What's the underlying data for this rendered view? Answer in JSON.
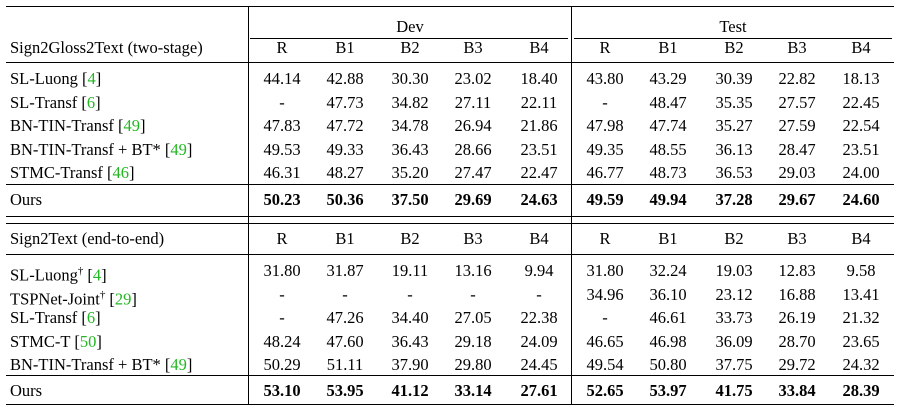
{
  "groups": {
    "dev": "Dev",
    "test": "Test"
  },
  "metric_headers": [
    "R",
    "B1",
    "B2",
    "B3",
    "B4"
  ],
  "section1": {
    "header": "Sign2Gloss2Text (two-stage)",
    "rows": [
      {
        "name": "SL-Luong ",
        "cite": "4",
        "post": "",
        "dev": [
          "44.14",
          "42.88",
          "30.30",
          "23.02",
          "18.40"
        ],
        "test": [
          "43.80",
          "43.29",
          "30.39",
          "22.82",
          "18.13"
        ]
      },
      {
        "name": "SL-Transf ",
        "cite": "6",
        "post": "",
        "dev": [
          "-",
          "47.73",
          "34.82",
          "27.11",
          "22.11"
        ],
        "test": [
          "-",
          "48.47",
          "35.35",
          "27.57",
          "22.45"
        ]
      },
      {
        "name": "BN-TIN-Transf ",
        "cite": "49",
        "post": "",
        "dev": [
          "47.83",
          "47.72",
          "34.78",
          "26.94",
          "21.86"
        ],
        "test": [
          "47.98",
          "47.74",
          "35.27",
          "27.59",
          "22.54"
        ]
      },
      {
        "name": "BN-TIN-Transf + BT* ",
        "cite": "49",
        "post": "",
        "dev": [
          "49.53",
          "49.33",
          "36.43",
          "28.66",
          "23.51"
        ],
        "test": [
          "49.35",
          "48.55",
          "36.13",
          "28.47",
          "23.51"
        ]
      },
      {
        "name": "STMC-Transf ",
        "cite": "46",
        "post": "",
        "dev": [
          "46.31",
          "48.27",
          "35.20",
          "27.47",
          "22.47"
        ],
        "test": [
          "46.77",
          "48.73",
          "36.53",
          "29.03",
          "24.00"
        ]
      }
    ],
    "ours": {
      "name": "Ours",
      "dev": [
        "50.23",
        "50.36",
        "37.50",
        "29.69",
        "24.63"
      ],
      "test": [
        "49.59",
        "49.94",
        "37.28",
        "29.67",
        "24.60"
      ]
    }
  },
  "section2": {
    "header": "Sign2Text (end-to-end)",
    "rows": [
      {
        "name": "SL-Luong",
        "sup": "†",
        "cite": "4",
        "dev": [
          "31.80",
          "31.87",
          "19.11",
          "13.16",
          "9.94"
        ],
        "test": [
          "31.80",
          "32.24",
          "19.03",
          "12.83",
          "9.58"
        ]
      },
      {
        "name": "TSPNet-Joint",
        "sup": "†",
        "cite": "29",
        "dev": [
          "-",
          "-",
          "-",
          "-",
          "-"
        ],
        "test": [
          "34.96",
          "36.10",
          "23.12",
          "16.88",
          "13.41"
        ]
      },
      {
        "name": "SL-Transf ",
        "sup": "",
        "cite": "6",
        "dev": [
          "-",
          "47.26",
          "34.40",
          "27.05",
          "22.38"
        ],
        "test": [
          "-",
          "46.61",
          "33.73",
          "26.19",
          "21.32"
        ]
      },
      {
        "name": "STMC-T ",
        "sup": "",
        "cite": "50",
        "dev": [
          "48.24",
          "47.60",
          "36.43",
          "29.18",
          "24.09"
        ],
        "test": [
          "46.65",
          "46.98",
          "36.09",
          "28.70",
          "23.65"
        ]
      },
      {
        "name": "BN-TIN-Transf + BT* ",
        "sup": "",
        "cite": "49",
        "dev": [
          "50.29",
          "51.11",
          "37.90",
          "29.80",
          "24.45"
        ],
        "test": [
          "49.54",
          "50.80",
          "37.75",
          "29.72",
          "24.32"
        ]
      }
    ],
    "ours": {
      "name": "Ours",
      "dev": [
        "53.10",
        "53.95",
        "41.12",
        "33.14",
        "27.61"
      ],
      "test": [
        "52.65",
        "53.97",
        "41.75",
        "33.84",
        "28.39"
      ]
    }
  }
}
